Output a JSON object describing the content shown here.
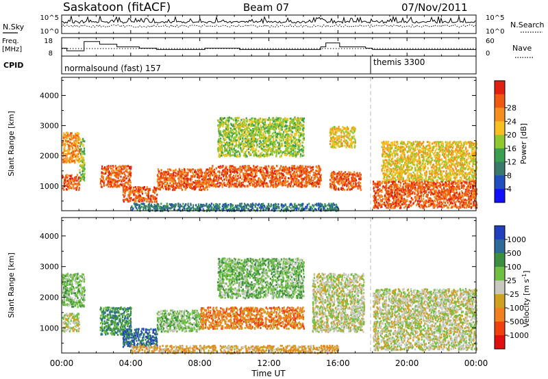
{
  "header": {
    "station": "Saskatoon (fitACF)",
    "beam": "Beam 07",
    "date": "07/Nov/2011"
  },
  "noise_panel": {
    "left_label": "N.Sky",
    "right_label": "N.Search",
    "left_ticks": [
      "10^5",
      "10^0"
    ],
    "right_ticks": [
      "10^5",
      "10^0"
    ]
  },
  "freq_panel": {
    "left_label_line1": "Freq.",
    "left_label_line2": "[MHz]",
    "left_ticks": [
      "18",
      "8"
    ],
    "right_ticks": [
      "60",
      "0"
    ],
    "right_label": "Nave"
  },
  "cpid_panel": {
    "label": "CPID",
    "programs": [
      {
        "name": "normalsound (fast) 157",
        "start": 0
      },
      {
        "name": "themis 3300",
        "start": 18
      }
    ]
  },
  "x_axis": {
    "label": "Time UT",
    "ticks": [
      "00:00",
      "04:00",
      "08:00",
      "12:00",
      "16:00",
      "20:00",
      "00:00"
    ]
  },
  "colors": {
    "power": [
      "#1010ff",
      "#2050c0",
      "#3a7a6a",
      "#3aa050",
      "#90c830",
      "#f5c020",
      "#f59020",
      "#f05a10",
      "#e02010"
    ],
    "velocity": [
      "#2040c0",
      "#2d6a9a",
      "#3a9040",
      "#6fc040",
      "#c8c8c0",
      "#d0a020",
      "#f08020",
      "#f04010",
      "#e01010"
    ]
  },
  "chart_data": [
    {
      "type": "heatmap",
      "title": "Power",
      "ylabel": "Slant Range [km]",
      "xlabel": "Time UT",
      "xlim": [
        0,
        24
      ],
      "ylim": [
        180,
        4600
      ],
      "yticks": [
        1000,
        2000,
        3000,
        4000
      ],
      "colorbar": {
        "label": "Power [dB]",
        "range": [
          0,
          32
        ],
        "ticks": [
          "4",
          "8",
          "12",
          "16",
          "20",
          "24",
          "28"
        ]
      },
      "bands": [
        {
          "t0": 0.0,
          "t1": 1.0,
          "r0": 900,
          "r1": 1400,
          "level": 28
        },
        {
          "t0": 0.0,
          "t1": 1.0,
          "r0": 1800,
          "r1": 2800,
          "level": 22
        },
        {
          "t0": 1.0,
          "t1": 1.3,
          "r0": 1200,
          "r1": 2600,
          "level": 16
        },
        {
          "t0": 2.2,
          "t1": 4.0,
          "r0": 1000,
          "r1": 1700,
          "level": 28
        },
        {
          "t0": 3.5,
          "t1": 5.5,
          "r0": 500,
          "r1": 1000,
          "level": 26
        },
        {
          "t0": 5.5,
          "t1": 8.5,
          "r0": 900,
          "r1": 1600,
          "level": 27
        },
        {
          "t0": 8.5,
          "t1": 15.0,
          "r0": 1000,
          "r1": 1700,
          "level": 27
        },
        {
          "t0": 9.0,
          "t1": 14.0,
          "r0": 2000,
          "r1": 3300,
          "level": 14
        },
        {
          "t0": 15.5,
          "t1": 17.3,
          "r0": 900,
          "r1": 1500,
          "level": 26
        },
        {
          "t0": 15.5,
          "t1": 17.0,
          "r0": 2300,
          "r1": 3000,
          "level": 18
        },
        {
          "t0": 18.0,
          "t1": 24.0,
          "r0": 300,
          "r1": 1200,
          "level": 29
        },
        {
          "t0": 18.5,
          "t1": 24.0,
          "r0": 1200,
          "r1": 2500,
          "level": 18
        },
        {
          "t0": 4.0,
          "t1": 16.0,
          "r0": 200,
          "r1": 450,
          "level": 6
        }
      ]
    },
    {
      "type": "heatmap",
      "title": "Velocity",
      "ylabel": "Slant Range [km]",
      "xlabel": "Time UT",
      "xlim": [
        0,
        24
      ],
      "ylim": [
        180,
        4600
      ],
      "yticks": [
        1000,
        2000,
        3000,
        4000
      ],
      "colorbar": {
        "label": "Velocity [m s^-1]",
        "ticks": [
          "1000",
          "500",
          "100",
          "25",
          "-25",
          "-100",
          "-500",
          "-1000"
        ]
      },
      "bands": [
        {
          "t0": 0.0,
          "t1": 1.0,
          "r0": 900,
          "r1": 1500,
          "level": 4
        },
        {
          "t0": 0.0,
          "t1": 1.3,
          "r0": 1700,
          "r1": 2800,
          "level": 3
        },
        {
          "t0": 2.2,
          "t1": 4.0,
          "r0": 800,
          "r1": 1700,
          "level": 2
        },
        {
          "t0": 3.5,
          "t1": 5.5,
          "r0": 400,
          "r1": 1000,
          "level": 1
        },
        {
          "t0": 5.5,
          "t1": 8.0,
          "r0": 900,
          "r1": 1600,
          "level": 3
        },
        {
          "t0": 8.0,
          "t1": 14.0,
          "r0": 1000,
          "r1": 1700,
          "level": 6
        },
        {
          "t0": 9.0,
          "t1": 14.0,
          "r0": 2000,
          "r1": 3300,
          "level": 3
        },
        {
          "t0": 14.5,
          "t1": 17.5,
          "r0": 900,
          "r1": 2800,
          "level": 4
        },
        {
          "t0": 18.0,
          "t1": 24.0,
          "r0": 300,
          "r1": 2300,
          "level": 4
        },
        {
          "t0": 4.0,
          "t1": 16.0,
          "r0": 200,
          "r1": 450,
          "level": 5
        }
      ]
    }
  ]
}
